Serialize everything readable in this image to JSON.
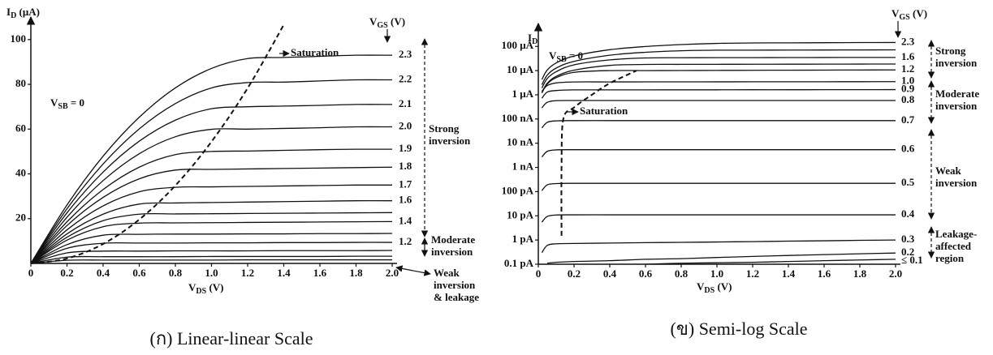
{
  "chart_data": [
    {
      "type": "line",
      "caption": "(ก) Linear-linear Scale",
      "xlabel": [
        "V",
        "DS",
        " (V)"
      ],
      "ylabel": [
        "I",
        "D",
        " (μA)"
      ],
      "legend_title": [
        "V",
        "GS",
        " (V)"
      ],
      "x": [
        0,
        0.2,
        0.4,
        0.6,
        0.8,
        1.0,
        1.2,
        1.4,
        1.6,
        1.8,
        2.0
      ],
      "xlim": [
        0,
        2
      ],
      "xticks": [
        0,
        0.2,
        0.4,
        0.6,
        0.8,
        {
          "value": 1,
          "label": "1.0"
        },
        1.2,
        1.4,
        1.6,
        1.8,
        {
          "value": 2,
          "label": "2.0"
        }
      ],
      "ylim": [
        0,
        105
      ],
      "yticks": [
        20,
        40,
        60,
        80,
        100
      ],
      "yscale": "linear",
      "color": "#111111",
      "series": [
        {
          "name": "2.3",
          "values": [
            0,
            26.1,
            47.9,
            65.3,
            78.4,
            87.1,
            91.5,
            92,
            92.5,
            93,
            93
          ]
        },
        {
          "name": "2.2",
          "values": [
            0,
            24.4,
            44.4,
            60.1,
            71.4,
            78.4,
            80.8,
            81,
            81.5,
            82,
            82
          ]
        },
        {
          "name": "2.1",
          "values": [
            0,
            22.6,
            40.8,
            54.6,
            64,
            69.1,
            70,
            70.3,
            70.6,
            71,
            71
          ]
        },
        {
          "name": "2.0",
          "values": [
            0,
            20.6,
            37,
            49,
            56.6,
            59.9,
            60,
            60.3,
            60.6,
            61,
            61
          ]
        },
        {
          "name": "1.9",
          "values": [
            0,
            18.6,
            33,
            43,
            48.6,
            50,
            50.2,
            50.5,
            50.8,
            51,
            51
          ]
        },
        {
          "name": "1.8",
          "values": [
            0,
            16.9,
            29.5,
            37.8,
            41.7,
            42,
            42.2,
            42.4,
            42.6,
            42.8,
            43
          ]
        },
        {
          "name": "1.7",
          "values": [
            0,
            15,
            25.7,
            32,
            34,
            34.2,
            34.4,
            34.6,
            34.8,
            35,
            35
          ]
        },
        {
          "name": "1.6",
          "values": [
            0,
            13.2,
            22,
            26.5,
            27,
            27.2,
            27.4,
            27.6,
            27.8,
            28,
            28
          ]
        },
        {
          "name": null,
          "values": [
            0,
            11.7,
            19.1,
            22,
            22.1,
            22.2,
            22.3,
            22.4,
            22.5,
            22.6,
            22.7
          ]
        },
        {
          "name": "1.4",
          "values": [
            0,
            10.4,
            16.4,
            18,
            18.1,
            18.2,
            18.3,
            18.4,
            18.5,
            18.6,
            18.7
          ]
        },
        {
          "name": null,
          "values": [
            0,
            8.4,
            12.6,
            13,
            13.1,
            13.1,
            13.2,
            13.2,
            13.3,
            13.3,
            13.4
          ]
        },
        {
          "name": "1.2",
          "values": [
            0,
            6.75,
            9,
            9.1,
            9.1,
            9.2,
            9.2,
            9.3,
            9.3,
            9.4,
            9.4
          ]
        },
        {
          "name": null,
          "values": [
            0,
            4.7,
            5.5,
            5.5,
            5.6,
            5.6,
            5.6,
            5.7,
            5.7,
            5.7,
            5.8
          ]
        },
        {
          "name": null,
          "values": [
            0,
            2.8,
            3,
            3,
            3,
            3.1,
            3.1,
            3.1,
            3.1,
            3.2,
            3.2
          ]
        },
        {
          "name": null,
          "values": [
            0,
            1.4,
            1.5,
            1.5,
            1.5,
            1.5,
            1.6,
            1.6,
            1.6,
            1.6,
            1.6
          ]
        },
        {
          "name": "Saturation",
          "dashed": true,
          "values": [
            0,
            2.2,
            8.7,
            19.6,
            34.8,
            54.4,
            78.3,
            106.6,
            null,
            null,
            null
          ]
        }
      ],
      "annotations": [
        {
          "text": [
            "V",
            "SB",
            " = 0"
          ]
        }
      ],
      "regions": [
        {
          "lines": [
            "Strong",
            "inversion"
          ]
        },
        {
          "lines": [
            "Moderate",
            "inversion"
          ]
        },
        {
          "lines": [
            "Weak",
            "inversion",
            "& leakage"
          ]
        }
      ]
    },
    {
      "type": "line",
      "caption": "(ข) Semi-log Scale",
      "xlabel": [
        "V",
        "DS",
        " (V)"
      ],
      "ylabel": [
        "I",
        "D"
      ],
      "legend_title": [
        "V",
        "GS",
        " (V)"
      ],
      "x": [
        0.02,
        0.05,
        0.1,
        0.2,
        0.4,
        0.6,
        0.8,
        1.0,
        1.2,
        1.4,
        1.6,
        1.8,
        2.0
      ],
      "xlim": [
        0,
        2
      ],
      "xticks": [
        0,
        0.2,
        0.4,
        0.6,
        0.8,
        {
          "value": 1,
          "label": "1.0"
        },
        1.2,
        1.4,
        1.6,
        1.8,
        {
          "value": 2,
          "label": "2.0"
        }
      ],
      "ylim": [
        1e-13,
        0.0003
      ],
      "yticks": [
        {
          "value": 1e-13,
          "label": "0.1 pA"
        },
        {
          "value": 1e-12,
          "label": "1 pA"
        },
        {
          "value": 1e-11,
          "label": "10 pA"
        },
        {
          "value": 1e-10,
          "label": "100 pA"
        },
        {
          "value": 1e-09,
          "label": "1 nA"
        },
        {
          "value": 1e-08,
          "label": "10 nA"
        },
        {
          "value": 1e-07,
          "label": "100 nA"
        },
        {
          "value": 1e-06,
          "label": "1 μA"
        },
        {
          "value": 1e-05,
          "label": "10 μA"
        },
        {
          "value": 0.0001,
          "label": "100 μA"
        }
      ],
      "yscale": "log",
      "color": "#111111",
      "series": [
        {
          "name": "2.3",
          "values": [
            4.3e-06,
            1.06e-05,
            2.07e-05,
            4e-05,
            7.3e-05,
            9.9e-05,
            0.000119,
            0.000133,
            0.000139,
            0.00014,
            0.000142,
            0.000144,
            0.000145
          ]
        },
        {
          "name": null,
          "values": [
            2.6e-06,
            6.5e-06,
            1.27e-05,
            2.41e-05,
            4.32e-05,
            5.71e-05,
            6.6e-05,
            6.99e-05,
            7e-05,
            7.05e-05,
            7.1e-05,
            7.15e-05,
            7.2e-05
          ]
        },
        {
          "name": "1.6",
          "values": [
            1.9e-06,
            4.7e-06,
            9e-06,
            1.73e-05,
            2.77e-05,
            3.33e-05,
            3.4e-05,
            3.42e-05,
            3.44e-05,
            3.46e-05,
            3.48e-05,
            3.5e-05,
            3.5e-05
          ]
        },
        {
          "name": null,
          "values": [
            1.24e-06,
            3e-06,
            5.8e-06,
            1.04e-05,
            1.64e-05,
            1.8e-05,
            1.81e-05,
            1.82e-05,
            1.83e-05,
            1.84e-05,
            1.85e-05,
            1.86e-05,
            1.87e-05
          ]
        },
        {
          "name": "1.2",
          "values": [
            1.2e-06,
            2.8e-06,
            5.1e-06,
            8.5e-06,
            1e-05,
            1e-05,
            1.01e-05,
            1.02e-05,
            1.03e-05,
            1.04e-05,
            1.05e-05,
            1.06e-05,
            1.07e-05
          ]
        },
        {
          "name": "1.0",
          "values": [
            1.4e-06,
            2.4e-06,
            3.1e-06,
            3.4e-06,
            3.4e-06,
            3.42e-06,
            3.43e-06,
            3.44e-06,
            3.45e-06,
            3.46e-06,
            3.47e-06,
            3.48e-06,
            3.5e-06
          ]
        },
        {
          "name": "0.9",
          "values": [
            7.2e-07,
            1.3e-06,
            1.5e-06,
            1.6e-06,
            1.6e-06,
            1.6e-06,
            1.61e-06,
            1.61e-06,
            1.62e-06,
            1.62e-06,
            1.63e-06,
            1.63e-06,
            1.64e-06
          ]
        },
        {
          "name": "0.8",
          "values": [
            2.9e-07,
            4.9e-07,
            5.7e-07,
            5.8e-07,
            5.8e-07,
            5.8e-07,
            5.8e-07,
            5.8e-07,
            5.8e-07,
            5.8e-07,
            5.8e-07,
            5.8e-07,
            5.8e-07
          ]
        },
        {
          "name": "0.7",
          "values": [
            4.3e-08,
            7.3e-08,
            8.4e-08,
            8.6e-08,
            8.6e-08,
            8.6e-08,
            8.6e-08,
            8.6e-08,
            8.6e-08,
            8.6e-08,
            8.6e-08,
            8.6e-08,
            8.6e-08
          ]
        },
        {
          "name": "0.6",
          "values": [
            2.7e-09,
            4.6e-09,
            5.3e-09,
            5.4e-09,
            5.4e-09,
            5.4e-09,
            5.4e-09,
            5.4e-09,
            5.4e-09,
            5.4e-09,
            5.4e-09,
            5.4e-09,
            5.4e-09
          ]
        },
        {
          "name": "0.5",
          "values": [
            1.1e-10,
            1.9e-10,
            2.15e-10,
            2.2e-10,
            2.2e-10,
            2.2e-10,
            2.2e-10,
            2.2e-10,
            2.2e-10,
            2.2e-10,
            2.2e-10,
            2.2e-10,
            2.2e-10
          ]
        },
        {
          "name": "0.4",
          "values": [
            5.5e-12,
            9.4e-12,
            1.08e-11,
            1.1e-11,
            1.1e-11,
            1.1e-11,
            1.1e-11,
            1.1e-11,
            1.1e-11,
            1.1e-11,
            1.1e-11,
            1.1e-11,
            1.1e-11
          ]
        },
        {
          "name": "0.3",
          "values": [
            3e-13,
            6e-13,
            7e-13,
            7.2e-13,
            7.5e-13,
            7.8e-13,
            8e-13,
            8.3e-13,
            8.6e-13,
            9e-13,
            9.3e-13,
            9.7e-13,
            1e-12
          ]
        },
        {
          "name": "0.2",
          "values": [
            null,
            1.1e-13,
            1.2e-13,
            1.3e-13,
            1.4e-13,
            1.6e-13,
            1.7e-13,
            1.9e-13,
            2.1e-13,
            2.3e-13,
            2.5e-13,
            2.7e-13,
            2.9e-13
          ]
        },
        {
          "name": "≤ 0.1",
          "values": [
            null,
            null,
            null,
            null,
            null,
            1e-13,
            1.1e-13,
            1.15e-13,
            1.2e-13,
            1.3e-13,
            1.4e-13,
            1.5e-13,
            1.6e-13
          ]
        },
        {
          "name": "Saturation",
          "dashed": true,
          "x": [
            0.13,
            0.13,
            0.14,
            0.2,
            0.3,
            0.4,
            0.55
          ],
          "values": [
            1.5e-12,
            1e-09,
            1e-07,
            3e-07,
            1e-06,
            3e-06,
            1e-05
          ]
        }
      ],
      "annotations": [
        {
          "text": [
            "V",
            "SB",
            " = 0"
          ]
        }
      ],
      "regions": [
        {
          "lines": [
            "Strong",
            "inversion"
          ]
        },
        {
          "lines": [
            "Moderate",
            "inversion"
          ]
        },
        {
          "lines": [
            "Weak",
            "inversion"
          ]
        },
        {
          "lines": [
            "Leakage-",
            "affected",
            "region"
          ]
        }
      ]
    }
  ]
}
